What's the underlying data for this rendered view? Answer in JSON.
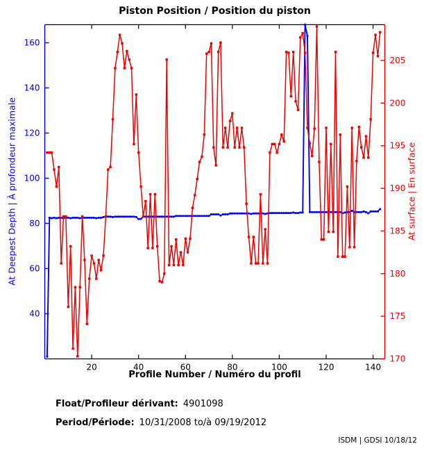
{
  "chart": {
    "title": "Piston Position / Position du piston"
  },
  "meta": {
    "float_label": "Float/Profileur dérivant:",
    "float_value": "4901098",
    "period_label": "Period/Période:",
    "period_value": "10/31/2008 to/à  09/19/2012"
  },
  "footer": "ISDM | GDSI 10/18/12",
  "chart_data": {
    "type": "line",
    "title": "Piston Position / Position du piston",
    "xlabel": "Profile Number / Numéro du profil",
    "x_start": 1,
    "x_axis": {
      "ticks": [
        20,
        40,
        60,
        80,
        100,
        120,
        140
      ],
      "range": [
        0,
        145
      ]
    },
    "left_axis": {
      "label": "At Deepest Depth | À profondeur maximale",
      "color": "#0000ee",
      "ticks": [
        40,
        60,
        80,
        100,
        120,
        140,
        160
      ],
      "range": [
        20,
        168
      ]
    },
    "right_axis": {
      "label": "At surface | En surface",
      "color": "#ee0000",
      "ticks": [
        170,
        175,
        180,
        185,
        190,
        195,
        200,
        205
      ],
      "range": [
        170,
        209.2
      ]
    },
    "grid": false,
    "legend": "none",
    "series": [
      {
        "name": "At Deepest Depth | À profondeur maximale",
        "axis": "left",
        "color": "#0000ee",
        "values": [
          21.0,
          82.5,
          82.3,
          82.5,
          82.3,
          82.5,
          82.5,
          82.3,
          82.5,
          82.5,
          82.3,
          82.5,
          82.5,
          82.5,
          82.3,
          82.5,
          82.5,
          82.5,
          82.5,
          82.5,
          82.5,
          82.3,
          82.5,
          82.5,
          82.8,
          83.0,
          83.0,
          83.0,
          82.8,
          83.0,
          83.0,
          83.0,
          83.0,
          83.0,
          83.0,
          83.0,
          83.0,
          83.0,
          82.8,
          81.9,
          82.0,
          83.0,
          83.0,
          83.0,
          83.0,
          83.0,
          83.0,
          83.0,
          83.0,
          83.0,
          83.0,
          83.0,
          83.0,
          83.0,
          83.0,
          83.3,
          83.3,
          83.3,
          83.3,
          83.3,
          83.3,
          83.3,
          83.3,
          83.3,
          83.3,
          83.3,
          83.3,
          83.3,
          83.3,
          83.3,
          84.0,
          84.0,
          84.0,
          84.0,
          83.5,
          84.0,
          84.0,
          84.0,
          84.4,
          84.4,
          84.4,
          84.4,
          84.4,
          84.4,
          84.4,
          84.4,
          84.4,
          84.2,
          84.4,
          84.4,
          84.4,
          84.4,
          84.4,
          84.2,
          84.4,
          84.6,
          84.6,
          84.6,
          84.6,
          84.6,
          84.6,
          84.6,
          84.6,
          84.6,
          84.6,
          84.8,
          84.6,
          84.6,
          84.8,
          84.8,
          168.0,
          163.0,
          85.0,
          85.0,
          85.0,
          85.0,
          85.0,
          85.0,
          85.0,
          85.0,
          85.0,
          85.0,
          85.0,
          85.0,
          85.0,
          85.0,
          84.5,
          84.8,
          85.0,
          85.0,
          85.6,
          85.0,
          85.0,
          85.0,
          85.0,
          85.3,
          85.0,
          84.5,
          85.3,
          85.3,
          85.3,
          85.3,
          86.3
        ]
      },
      {
        "name": "At surface | En surface",
        "axis": "right",
        "color": "#ee0000",
        "values": [
          194.2,
          194.2,
          194.2,
          192.2,
          190.2,
          192.5,
          181.2,
          186.7,
          186.7,
          176.1,
          183.2,
          171.2,
          178.4,
          170.3,
          178.4,
          186.7,
          181.6,
          174.1,
          179.4,
          182.1,
          181.2,
          179.4,
          181.6,
          180.4,
          182.1,
          186.7,
          192.2,
          192.5,
          198.1,
          204.1,
          206.0,
          208.0,
          207.0,
          204.1,
          206.1,
          205.1,
          204.1,
          195.2,
          201.0,
          194.2,
          190.2,
          186.7,
          188.5,
          183.0,
          189.3,
          183.0,
          189.3,
          183.2,
          179.1,
          179.0,
          180.0,
          205.1,
          181.0,
          183.2,
          181.0,
          184.0,
          181.0,
          182.5,
          181.0,
          184.1,
          182.5,
          184.1,
          187.7,
          189.2,
          191.1,
          193.1,
          193.7,
          196.3,
          205.8,
          206.0,
          207.0,
          194.8,
          192.7,
          206.0,
          207.1,
          194.8,
          197.1,
          194.8,
          197.9,
          198.8,
          194.8,
          197.1,
          194.8,
          197.1,
          194.8,
          188.2,
          184.3,
          181.2,
          184.3,
          181.2,
          181.2,
          189.3,
          181.2,
          185.2,
          181.2,
          194.2,
          195.2,
          195.2,
          194.2,
          195.2,
          196.3,
          195.5,
          206.0,
          205.9,
          200.8,
          206.0,
          200.2,
          199.2,
          207.7,
          208.2,
          205.9,
          197.1,
          195.3,
          193.8,
          197.0,
          209.0,
          193.1,
          184.0,
          184.0,
          197.1,
          184.9,
          195.2,
          184.9,
          206.0,
          182.0,
          196.3,
          182.0,
          182.0,
          190.2,
          183.1,
          197.1,
          183.1,
          193.2,
          197.2,
          194.8,
          193.6,
          196.1,
          193.6,
          198.1,
          205.9,
          208.0,
          205.5,
          208.3
        ]
      }
    ]
  }
}
